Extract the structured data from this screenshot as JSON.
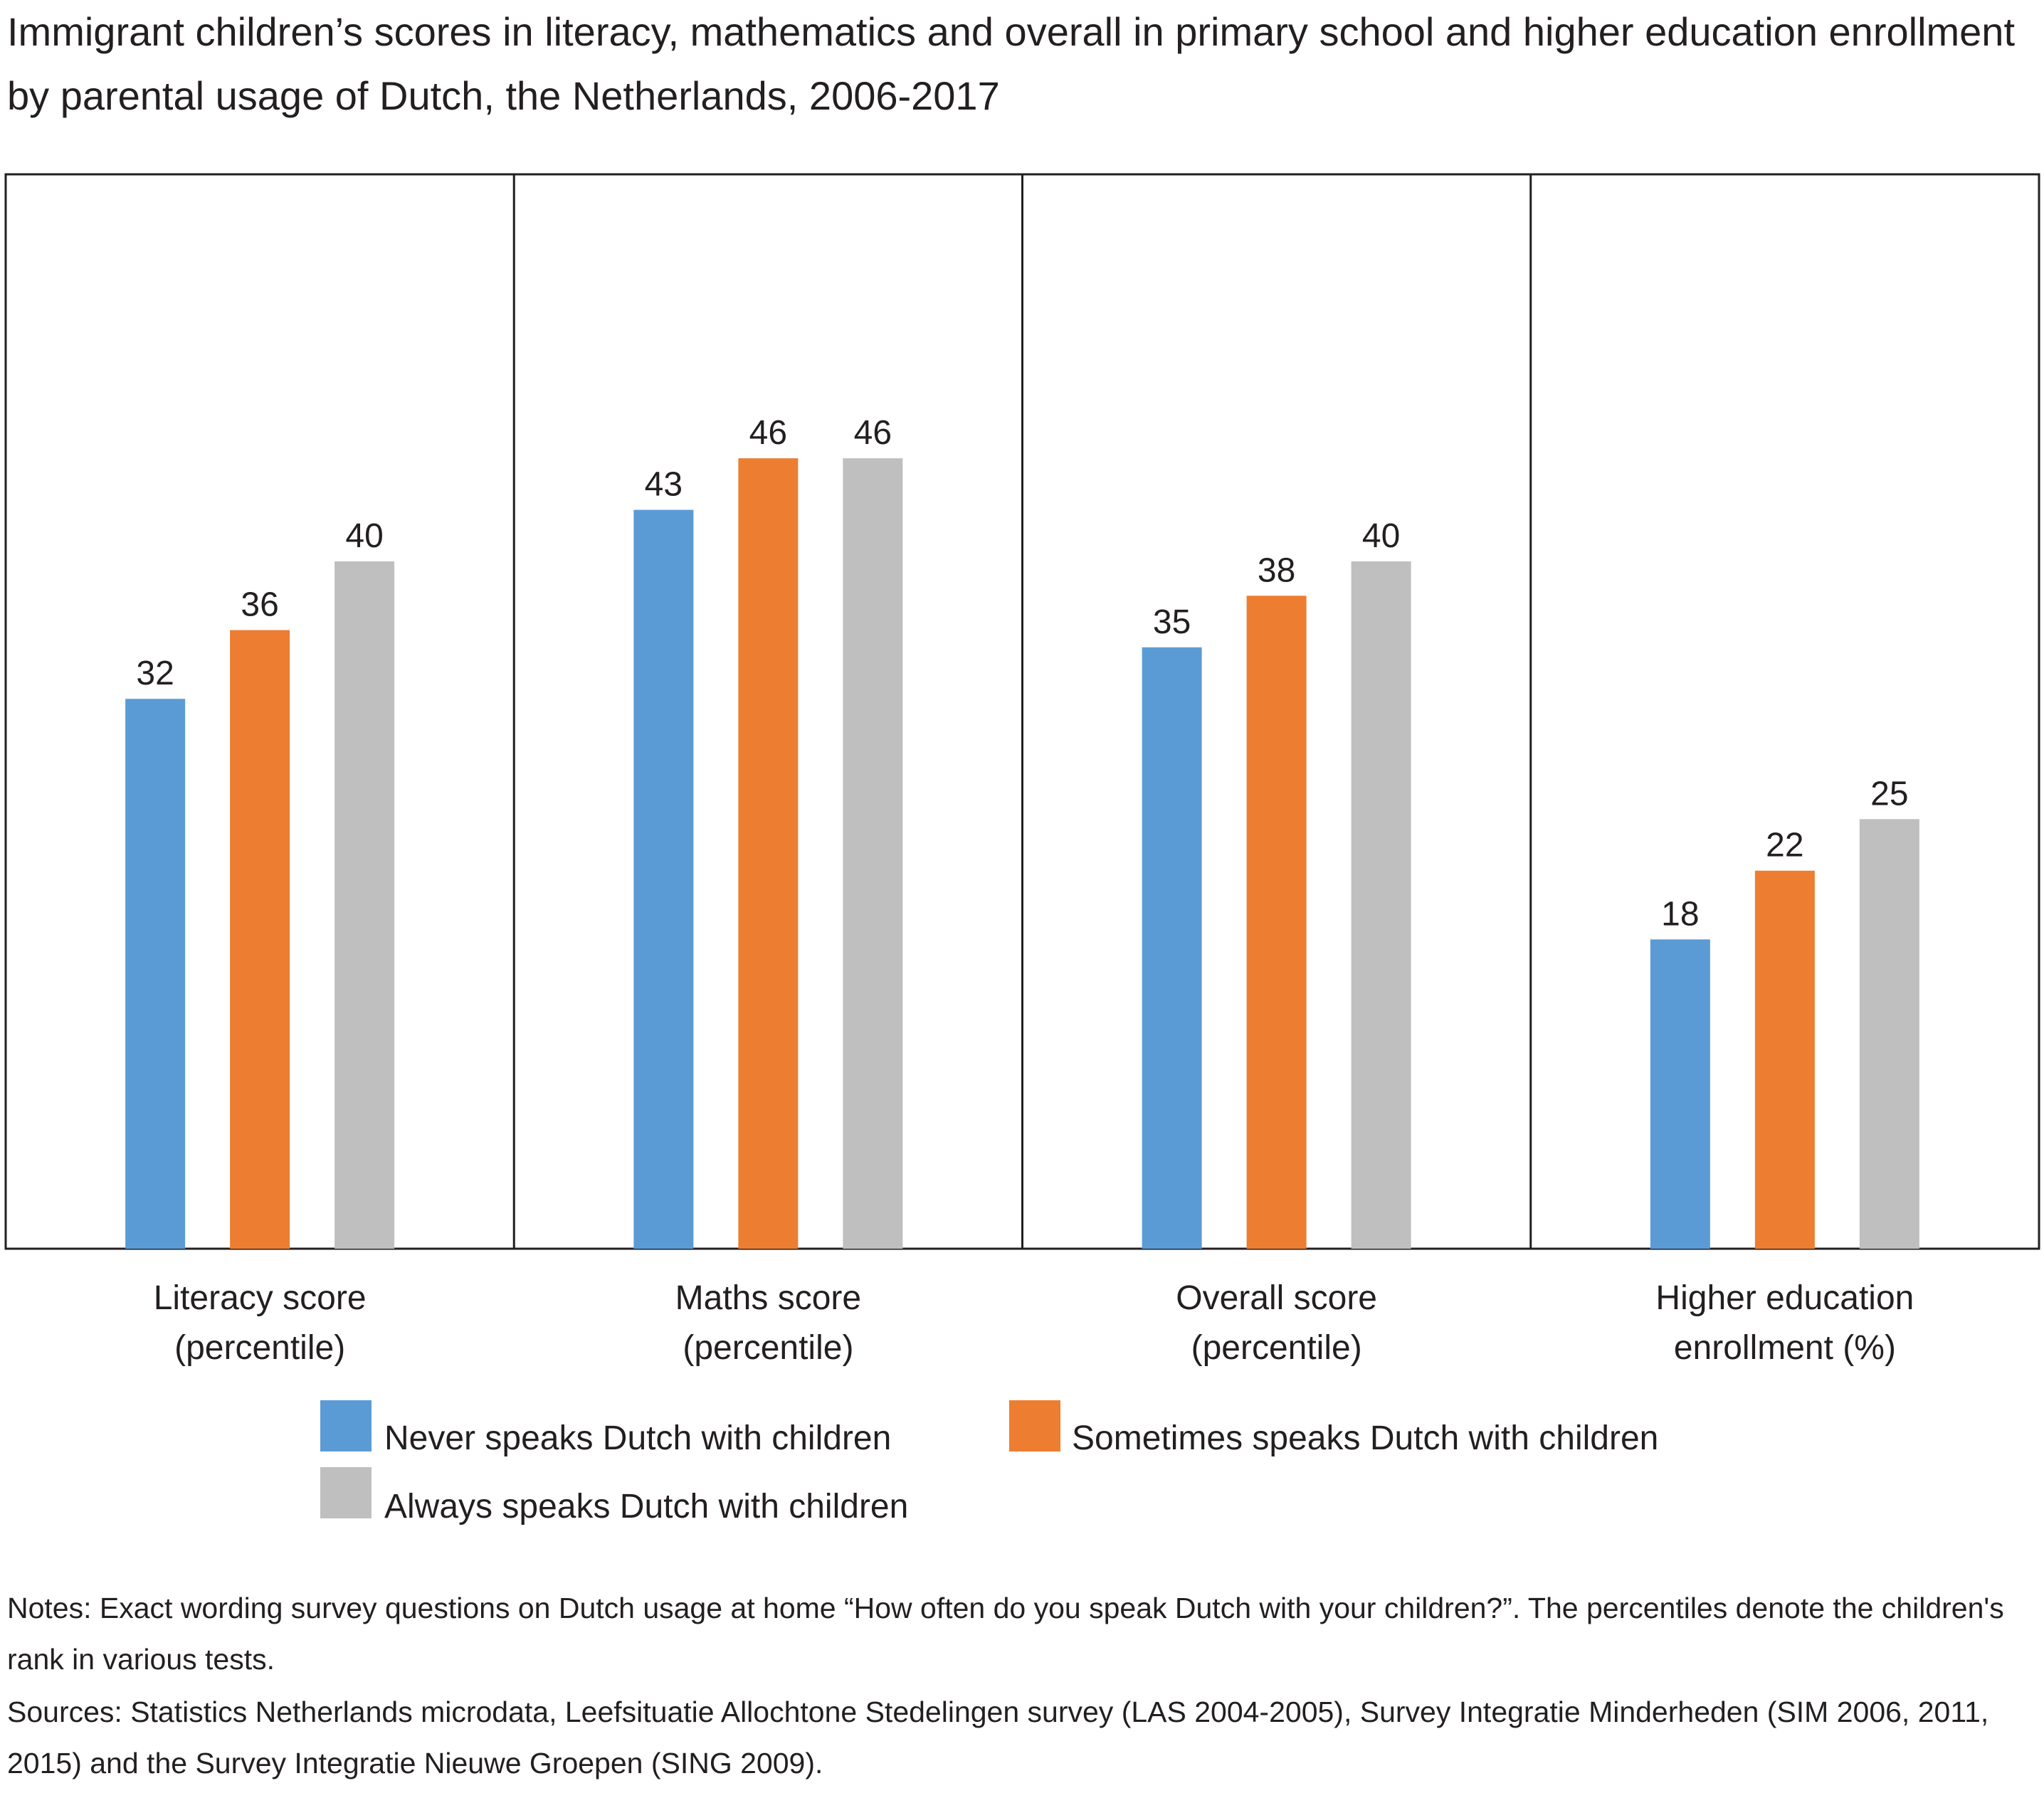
{
  "title": "Immigrant children’s scores in literacy, mathematics and overall in primary school and higher education enrollment by parental usage of Dutch, the Netherlands, 2006-2017",
  "chart_data": {
    "type": "bar",
    "categories": [
      [
        "Literacy score",
        "(percentile)"
      ],
      [
        "Maths score",
        "(percentile)"
      ],
      [
        "Overall score",
        "(percentile)"
      ],
      [
        "Higher education",
        "enrollment (%)"
      ]
    ],
    "series": [
      {
        "name": "Never speaks Dutch with children",
        "color": "#5b9bd5",
        "values": [
          32,
          43,
          35,
          18
        ]
      },
      {
        "name": "Sometimes speaks Dutch with children",
        "color": "#ed7d31",
        "values": [
          36,
          46,
          38,
          22
        ]
      },
      {
        "name": "Always speaks Dutch with children",
        "color": "#bfbfbf",
        "values": [
          40,
          46,
          40,
          25
        ]
      }
    ],
    "ylim": [
      0,
      50
    ],
    "grid": false,
    "data_labels": true,
    "legend_position": "bottom"
  },
  "notes": "Notes: Exact wording survey questions on Dutch usage at home “How often do you speak Dutch with your children?”. The percentiles denote the children's rank in various tests.",
  "sources": "Sources: Statistics Netherlands microdata, Leefsituatie Allochtone Stedelingen survey (LAS 2004-2005), Survey Integratie Minderheden (SIM 2006, 2011, 2015) and the Survey Integratie Nieuwe Groepen (SING 2009)."
}
